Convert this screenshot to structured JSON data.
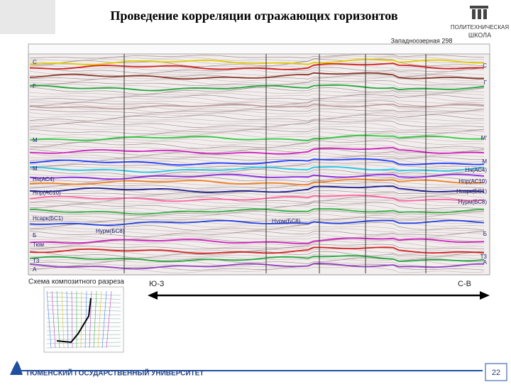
{
  "header": {
    "title": "Проведение корреляции отражающих горизонтов",
    "logo": [
      "ПОЛИТЕХНИЧЕСКАЯ",
      "ШКОЛА"
    ]
  },
  "section": {
    "well": "Западноозерная 298",
    "left_labels": [
      "C",
      "Г",
      "М",
      "М",
      "Нч(АС4)",
      "Нпр(АС10)",
      "Нсарк(БС1)",
      "Нурм(БС8)",
      "Б",
      "Тюм",
      "Т3",
      "А"
    ],
    "middle_labels": [
      "Нурм(БС8)"
    ],
    "right_labels": [
      "С",
      "Г",
      "М'",
      "М",
      "Нч(АС4)",
      "Нпр(АС10)",
      "Нсарк(БС1)",
      "Нурм(БС8)",
      "Б",
      "Т3",
      "А"
    ],
    "scheme_caption": "Схема композитного разреза",
    "direction_from": "Ю-З",
    "direction_to": "С-В"
  },
  "footer": {
    "university": "ТЮМЕНСКИЙ ГОСУДАРСТВЕННЫЙ УНИВЕРСИТЕТ",
    "page": "22"
  }
}
